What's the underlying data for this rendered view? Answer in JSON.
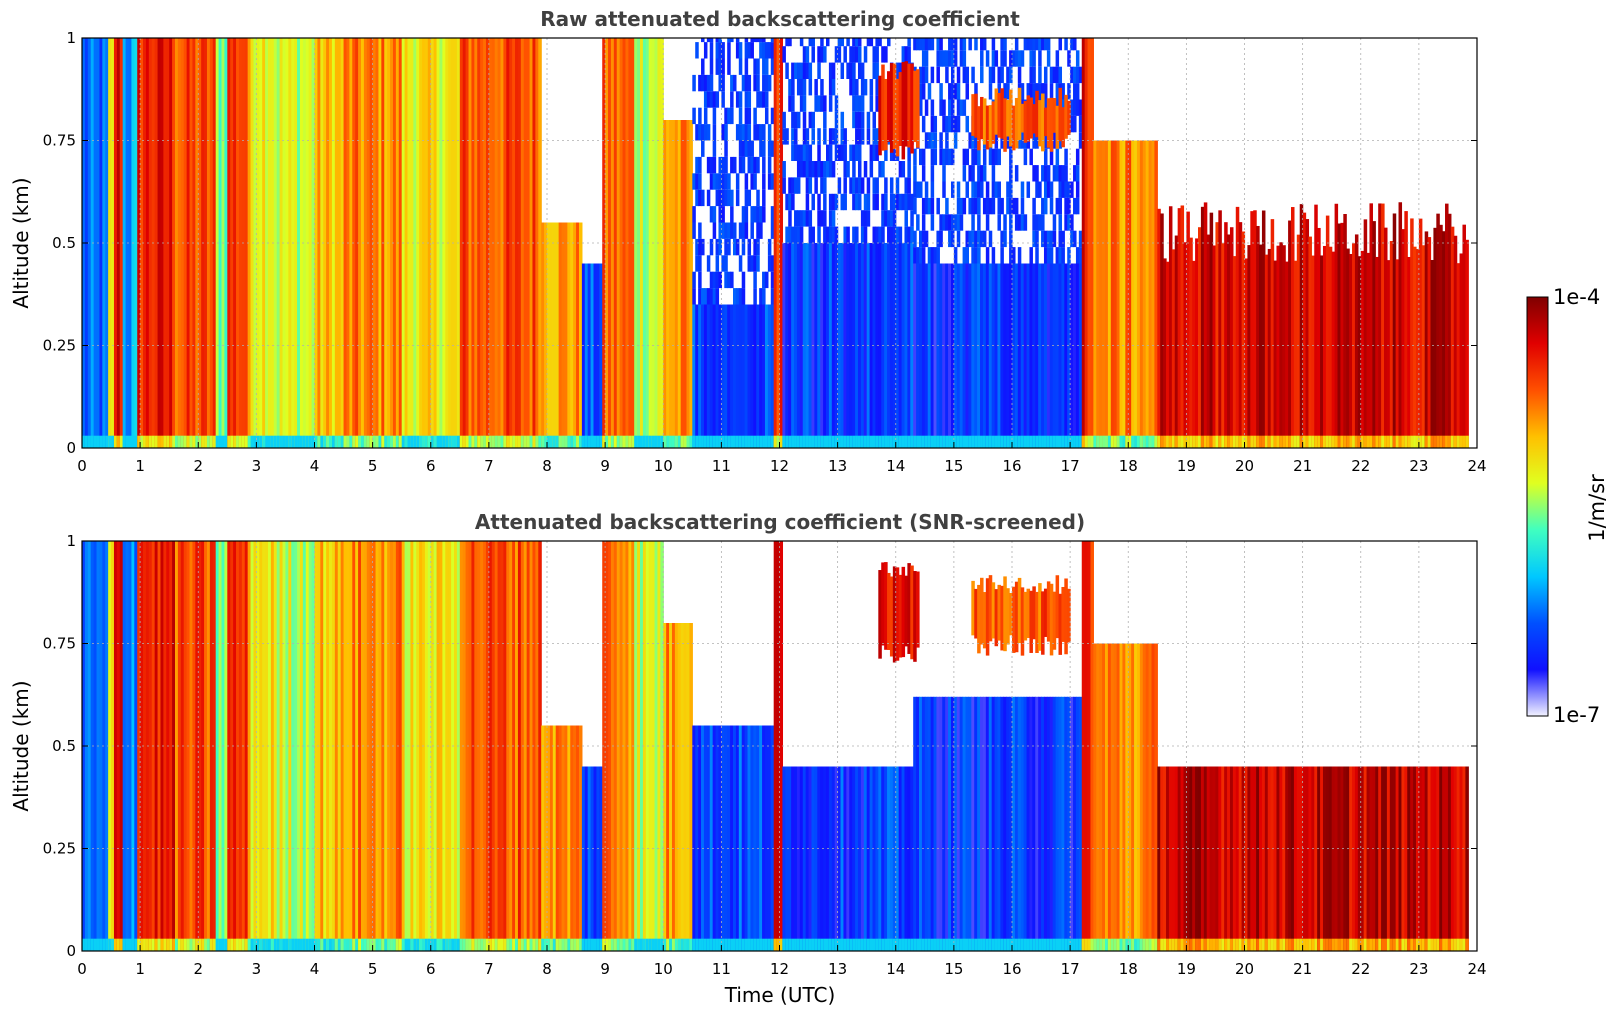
{
  "colors": {
    "colormap": [
      "#f2f2ff",
      "#1010ff",
      "#0050ff",
      "#00c8ff",
      "#40ffc0",
      "#e0ff20",
      "#ffc000",
      "#ff5000",
      "#e00000",
      "#800000"
    ],
    "grid": "#b0b0b0",
    "title": "#404040"
  },
  "colorbar": {
    "max_label": "1e-4",
    "min_label": "1e-7",
    "unit_label": "1/m/sr",
    "scale": "log"
  },
  "chart_data": [
    {
      "type": "heatmap",
      "title": "Raw attenuated backscattering coefficient",
      "xlabel": "",
      "ylabel": "Altitude (km)",
      "xlim": [
        0,
        24
      ],
      "ylim": [
        0,
        1
      ],
      "x_ticks": [
        "0",
        "1",
        "2",
        "3",
        "4",
        "5",
        "6",
        "7",
        "8",
        "9",
        "10",
        "11",
        "12",
        "13",
        "14",
        "15",
        "16",
        "17",
        "18",
        "19",
        "20",
        "21",
        "22",
        "23",
        "24"
      ],
      "y_ticks": [
        "0",
        "0.25",
        "0.5",
        "0.75",
        "1"
      ],
      "grid": true,
      "data_end_hour": 23.85,
      "vertical_profile": [
        {
          "start": 0.0,
          "end": 0.45,
          "intensity": 0.22,
          "top": 1.0,
          "upper": "speckle"
        },
        {
          "start": 0.45,
          "end": 0.55,
          "intensity": 0.55,
          "top": 1.0
        },
        {
          "start": 0.55,
          "end": 0.7,
          "intensity": 0.88,
          "top": 1.0
        },
        {
          "start": 0.7,
          "end": 0.95,
          "intensity": 0.3,
          "top": 1.0
        },
        {
          "start": 0.95,
          "end": 1.6,
          "intensity": 0.85,
          "top": 1.0
        },
        {
          "start": 1.6,
          "end": 2.3,
          "intensity": 0.78,
          "top": 1.0
        },
        {
          "start": 2.3,
          "end": 2.5,
          "intensity": 0.5,
          "top": 1.0
        },
        {
          "start": 2.5,
          "end": 2.85,
          "intensity": 0.82,
          "top": 1.0
        },
        {
          "start": 2.85,
          "end": 3.3,
          "intensity": 0.62,
          "top": 1.0
        },
        {
          "start": 3.3,
          "end": 4.0,
          "intensity": 0.55,
          "top": 1.0
        },
        {
          "start": 4.0,
          "end": 4.5,
          "intensity": 0.65,
          "top": 1.0
        },
        {
          "start": 4.5,
          "end": 5.5,
          "intensity": 0.72,
          "top": 1.0
        },
        {
          "start": 5.5,
          "end": 6.5,
          "intensity": 0.6,
          "top": 1.0
        },
        {
          "start": 6.5,
          "end": 7.9,
          "intensity": 0.78,
          "top": 1.0
        },
        {
          "start": 7.9,
          "end": 8.6,
          "intensity": 0.7,
          "top": 0.55
        },
        {
          "start": 8.6,
          "end": 8.95,
          "intensity": 0.2,
          "top": 0.45
        },
        {
          "start": 8.95,
          "end": 9.5,
          "intensity": 0.75,
          "top": 1.0
        },
        {
          "start": 9.5,
          "end": 10.0,
          "intensity": 0.55,
          "top": 1.0
        },
        {
          "start": 10.0,
          "end": 10.5,
          "intensity": 0.7,
          "top": 0.8
        },
        {
          "start": 10.5,
          "end": 11.9,
          "intensity": 0.2,
          "top": 0.35,
          "upper": "speckle"
        },
        {
          "start": 11.9,
          "end": 12.05,
          "intensity": 0.85,
          "top": 1.0
        },
        {
          "start": 12.05,
          "end": 14.3,
          "intensity": 0.18,
          "top": 0.5,
          "upper": "speckle"
        },
        {
          "start": 14.3,
          "end": 17.2,
          "intensity": 0.17,
          "top": 0.45,
          "upper": "speckle"
        },
        {
          "start": 17.2,
          "end": 17.4,
          "intensity": 0.85,
          "top": 1.0
        },
        {
          "start": 17.4,
          "end": 18.5,
          "intensity": 0.72,
          "top": 0.75
        },
        {
          "start": 18.5,
          "end": 23.85,
          "intensity": 0.9,
          "top": 0.45,
          "upper": "spiky"
        }
      ],
      "features": [
        {
          "name": "elevated layer",
          "start": 13.7,
          "end": 14.4,
          "bottom": 0.7,
          "top": 0.95,
          "intensity": 0.92
        },
        {
          "name": "elevated layer",
          "start": 15.3,
          "end": 17.0,
          "bottom": 0.72,
          "top": 0.88,
          "intensity": 0.85
        }
      ]
    },
    {
      "type": "heatmap",
      "title": "Attenuated backscattering coefficient (SNR-screened)",
      "xlabel": "Time (UTC)",
      "ylabel": "Altitude (km)",
      "xlim": [
        0,
        24
      ],
      "ylim": [
        0,
        1
      ],
      "x_ticks": [
        "0",
        "1",
        "2",
        "3",
        "4",
        "5",
        "6",
        "7",
        "8",
        "9",
        "10",
        "11",
        "12",
        "13",
        "14",
        "15",
        "16",
        "17",
        "18",
        "19",
        "20",
        "21",
        "22",
        "23",
        "24"
      ],
      "y_ticks": [
        "0",
        "0.25",
        "0.5",
        "0.75",
        "1"
      ],
      "grid": true,
      "data_end_hour": 23.85,
      "vertical_profile": [
        {
          "start": 0.0,
          "end": 0.45,
          "intensity": 0.22,
          "top": 1.0
        },
        {
          "start": 0.45,
          "end": 0.55,
          "intensity": 0.55,
          "top": 1.0
        },
        {
          "start": 0.55,
          "end": 0.7,
          "intensity": 0.88,
          "top": 1.0
        },
        {
          "start": 0.7,
          "end": 0.95,
          "intensity": 0.3,
          "top": 1.0
        },
        {
          "start": 0.95,
          "end": 1.6,
          "intensity": 0.85,
          "top": 1.0
        },
        {
          "start": 1.6,
          "end": 2.3,
          "intensity": 0.78,
          "top": 1.0
        },
        {
          "start": 2.3,
          "end": 2.5,
          "intensity": 0.5,
          "top": 1.0
        },
        {
          "start": 2.5,
          "end": 2.85,
          "intensity": 0.82,
          "top": 1.0
        },
        {
          "start": 2.85,
          "end": 3.3,
          "intensity": 0.62,
          "top": 1.0
        },
        {
          "start": 3.3,
          "end": 4.0,
          "intensity": 0.55,
          "top": 1.0
        },
        {
          "start": 4.0,
          "end": 4.5,
          "intensity": 0.65,
          "top": 1.0
        },
        {
          "start": 4.5,
          "end": 5.5,
          "intensity": 0.72,
          "top": 1.0
        },
        {
          "start": 5.5,
          "end": 6.5,
          "intensity": 0.6,
          "top": 1.0
        },
        {
          "start": 6.5,
          "end": 7.9,
          "intensity": 0.78,
          "top": 1.0
        },
        {
          "start": 7.9,
          "end": 8.6,
          "intensity": 0.72,
          "top": 0.55
        },
        {
          "start": 8.6,
          "end": 8.95,
          "intensity": 0.2,
          "top": 0.45
        },
        {
          "start": 8.95,
          "end": 9.5,
          "intensity": 0.75,
          "top": 1.0
        },
        {
          "start": 9.5,
          "end": 10.0,
          "intensity": 0.55,
          "top": 1.0
        },
        {
          "start": 10.0,
          "end": 10.5,
          "intensity": 0.7,
          "top": 0.8
        },
        {
          "start": 10.5,
          "end": 11.9,
          "intensity": 0.2,
          "top": 0.55
        },
        {
          "start": 11.9,
          "end": 12.05,
          "intensity": 0.85,
          "top": 1.0
        },
        {
          "start": 12.05,
          "end": 14.3,
          "intensity": 0.18,
          "top": 0.45
        },
        {
          "start": 14.3,
          "end": 17.2,
          "intensity": 0.17,
          "top": 0.62
        },
        {
          "start": 17.2,
          "end": 17.4,
          "intensity": 0.85,
          "top": 1.0
        },
        {
          "start": 17.4,
          "end": 18.5,
          "intensity": 0.72,
          "top": 0.75
        },
        {
          "start": 18.5,
          "end": 23.85,
          "intensity": 0.92,
          "top": 0.45
        }
      ],
      "features": [
        {
          "name": "elevated layer",
          "start": 13.7,
          "end": 14.4,
          "bottom": 0.7,
          "top": 0.95,
          "intensity": 0.95
        },
        {
          "name": "elevated layer",
          "start": 15.3,
          "end": 17.0,
          "bottom": 0.72,
          "top": 0.92,
          "intensity": 0.85
        }
      ]
    }
  ]
}
